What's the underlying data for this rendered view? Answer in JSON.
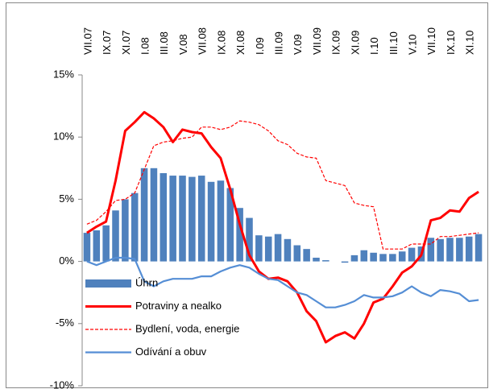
{
  "chart_data": {
    "type": "combo",
    "categories": [
      "VII.07",
      null,
      "IX.07",
      null,
      "XI.07",
      null,
      "I.08",
      null,
      "III.08",
      null,
      "V.08",
      null,
      "VII.08",
      null,
      "IX.08",
      null,
      "XI.08",
      null,
      "I.09",
      null,
      "III.09",
      null,
      "V.09",
      null,
      "VII.09",
      null,
      "IX.09",
      null,
      "XI.09",
      null,
      "I.10",
      null,
      "III.10",
      null,
      "V.10",
      null,
      "VII.10",
      null,
      "IX.10",
      null,
      "XI.10",
      null
    ],
    "ylim": [
      -10,
      15
    ],
    "yticks": [
      {
        "value": -10,
        "label": "-10%"
      },
      {
        "value": -5,
        "label": "-5%"
      },
      {
        "value": 0,
        "label": "0%"
      },
      {
        "value": 5,
        "label": "5%"
      },
      {
        "value": 10,
        "label": "10%"
      },
      {
        "value": 15,
        "label": "15%"
      }
    ],
    "legend": "bottom-left",
    "series": [
      {
        "name": "Úhrn",
        "type": "bar",
        "color": "#4f81bd",
        "values": [
          2.3,
          2.5,
          2.9,
          4.1,
          5.0,
          5.5,
          7.5,
          7.5,
          7.1,
          6.9,
          6.9,
          6.8,
          6.9,
          6.4,
          6.5,
          5.9,
          4.3,
          3.5,
          2.1,
          2.0,
          2.2,
          1.8,
          1.3,
          1.0,
          0.3,
          0.1,
          0.0,
          -0.1,
          0.5,
          0.9,
          0.7,
          0.6,
          0.6,
          0.8,
          1.1,
          1.2,
          1.9,
          1.8,
          1.9,
          1.9,
          2.0,
          2.2
        ]
      },
      {
        "name": "Potraviny a nealko",
        "type": "line",
        "color": "#ff0000",
        "width": 3,
        "dash": false,
        "values": [
          2.3,
          2.8,
          3.2,
          6.5,
          10.5,
          11.2,
          12.0,
          11.5,
          10.8,
          9.6,
          10.6,
          10.4,
          10.3,
          9.2,
          8.3,
          5.8,
          3.0,
          0.5,
          -0.8,
          -1.4,
          -1.3,
          -1.6,
          -2.5,
          -4.0,
          -4.8,
          -6.5,
          -6.0,
          -5.7,
          -6.2,
          -5.0,
          -3.3,
          -3.0,
          -2.0,
          -0.9,
          -0.4,
          0.5,
          3.3,
          3.5,
          4.1,
          4.0,
          5.1,
          5.6
        ]
      },
      {
        "name": "Bydlení, voda, energie",
        "type": "line",
        "color": "#ff0000",
        "width": 1.2,
        "dash": true,
        "values": [
          3.0,
          3.3,
          4.0,
          4.9,
          5.0,
          5.5,
          7.4,
          9.3,
          9.6,
          9.7,
          9.9,
          10.0,
          10.8,
          10.8,
          10.6,
          10.8,
          11.3,
          11.2,
          11.0,
          10.5,
          9.7,
          9.4,
          8.7,
          8.4,
          8.3,
          6.5,
          6.3,
          6.1,
          4.7,
          4.5,
          4.4,
          1.0,
          1.0,
          1.0,
          1.4,
          1.4,
          1.4,
          2.0,
          2.0,
          2.1,
          2.2,
          2.3
        ]
      },
      {
        "name": "Odívání a obuv",
        "type": "line",
        "color": "#558ed5",
        "width": 2.2,
        "dash": false,
        "values": [
          0.0,
          -0.3,
          0.0,
          0.3,
          0.3,
          0.2,
          -1.6,
          -2.0,
          -1.6,
          -1.4,
          -1.4,
          -1.4,
          -1.2,
          -1.2,
          -0.8,
          -0.5,
          -0.3,
          -0.5,
          -1.0,
          -1.4,
          -1.5,
          -2.0,
          -2.5,
          -2.7,
          -3.2,
          -3.7,
          -3.7,
          -3.5,
          -3.2,
          -2.7,
          -2.9,
          -2.9,
          -2.8,
          -2.5,
          -2.0,
          -2.5,
          -2.8,
          -2.3,
          -2.4,
          -2.6,
          -3.2,
          -3.1
        ]
      }
    ]
  }
}
